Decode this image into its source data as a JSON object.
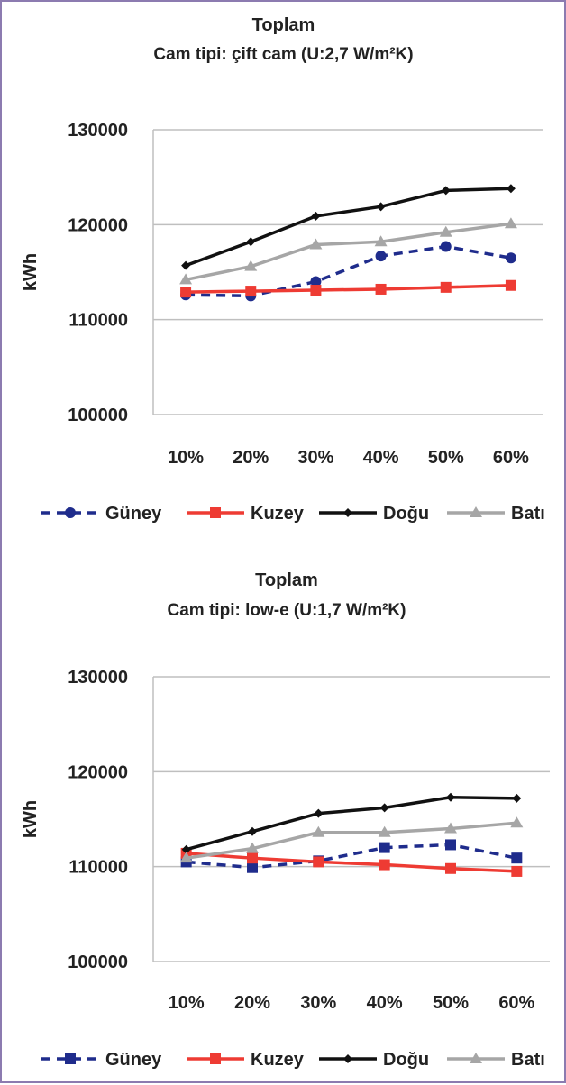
{
  "chart_data": [
    {
      "type": "line",
      "title": "Toplam",
      "subtitle": "Cam tipi: çift cam (U:2,7 W/m²K)",
      "xlabel": "",
      "ylabel": "kWh",
      "ylim": [
        100000,
        130000
      ],
      "yticks": [
        "100000",
        "110000",
        "120000",
        "130000"
      ],
      "categories": [
        "10%",
        "20%",
        "30%",
        "40%",
        "50%",
        "60%"
      ],
      "grid": true,
      "legend_position": "bottom",
      "series": [
        {
          "name": "Güney",
          "color": "#1f2c8c",
          "dash": true,
          "marker": "circle",
          "values": [
            112600,
            112500,
            114000,
            116700,
            117700,
            116500
          ]
        },
        {
          "name": "Kuzey",
          "color": "#ee3b33",
          "dash": false,
          "marker": "square",
          "values": [
            112900,
            113000,
            113100,
            113200,
            113400,
            113600
          ]
        },
        {
          "name": "Doğu",
          "color": "#111111",
          "dash": false,
          "marker": "diamond",
          "values": [
            115700,
            118200,
            120900,
            121900,
            123600,
            123800
          ]
        },
        {
          "name": "Batı",
          "color": "#a6a6a6",
          "dash": false,
          "marker": "triangle",
          "values": [
            114200,
            115600,
            117900,
            118200,
            119200,
            120100
          ]
        }
      ]
    },
    {
      "type": "line",
      "title": "Toplam",
      "subtitle": "Cam tipi: low-e (U:1,7 W/m²K)",
      "xlabel": "",
      "ylabel": "kWh",
      "ylim": [
        100000,
        130000
      ],
      "yticks": [
        "100000",
        "110000",
        "120000",
        "130000"
      ],
      "categories": [
        "10%",
        "20%",
        "30%",
        "40%",
        "50%",
        "60%"
      ],
      "grid": true,
      "legend_position": "bottom",
      "series": [
        {
          "name": "Güney",
          "color": "#1f2c8c",
          "dash": true,
          "marker": "square",
          "values": [
            110500,
            109900,
            110600,
            112000,
            112300,
            110900
          ]
        },
        {
          "name": "Kuzey",
          "color": "#ee3b33",
          "dash": false,
          "marker": "square",
          "values": [
            111400,
            110900,
            110500,
            110200,
            109800,
            109500
          ]
        },
        {
          "name": "Doğu",
          "color": "#111111",
          "dash": false,
          "marker": "diamond",
          "values": [
            111800,
            113700,
            115600,
            116200,
            117300,
            117200
          ]
        },
        {
          "name": "Batı",
          "color": "#a6a6a6",
          "dash": false,
          "marker": "triangle",
          "values": [
            110900,
            111900,
            113600,
            113600,
            114000,
            114600
          ]
        }
      ]
    }
  ]
}
